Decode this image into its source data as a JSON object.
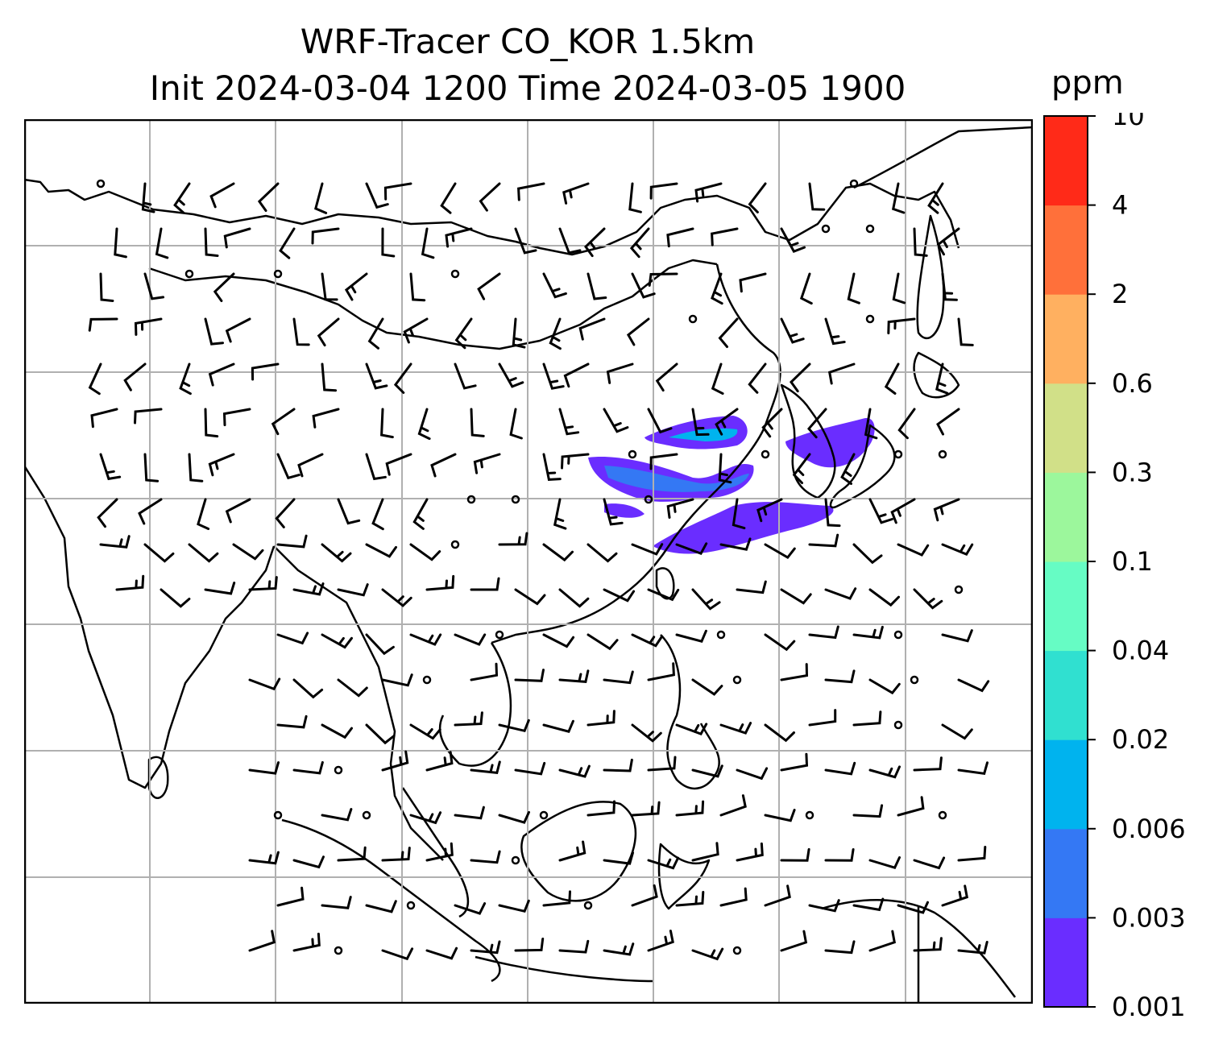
{
  "title": {
    "line1": "WRF-Tracer CO_KOR 1.5km",
    "line2": "Init 2024-03-04 1200 Time 2024-03-05 1900"
  },
  "colorbar": {
    "unit": "ppm",
    "levels": [
      "0.001",
      "0.003",
      "0.006",
      "0.02",
      "0.04",
      "0.1",
      "0.3",
      "0.6",
      "2",
      "4",
      "10"
    ],
    "colors": [
      "#6a2dff",
      "#3478f4",
      "#00b3ee",
      "#30e0d0",
      "#66fcc4",
      "#9cf79c",
      "#d1e088",
      "#ffb060",
      "#ff703a",
      "#ff2a18"
    ]
  },
  "map": {
    "frame_color": "#000000",
    "gridline_color": "#b0b0b0",
    "coastline_color": "#000000",
    "wind_barb_color": "#000000",
    "plume_color": "#6a2dff",
    "plume_inner_color": "#3478f4",
    "plume_core_color": "#00b3ee"
  }
}
